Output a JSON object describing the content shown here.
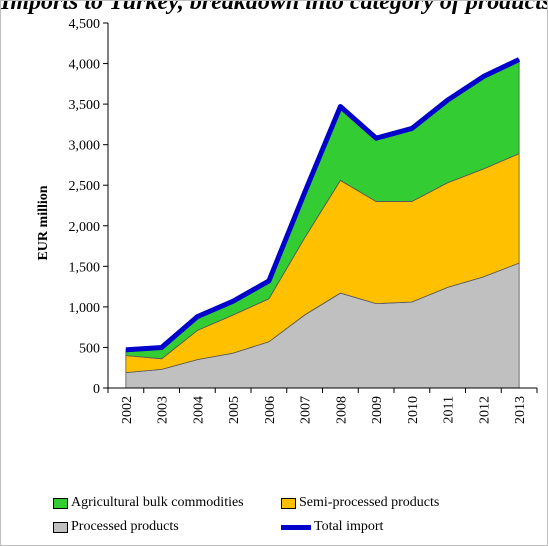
{
  "chart_data": {
    "type": "area",
    "title": "Imports to Turkey, breakdown into category of products (EUR million)",
    "ylabel": "EUR million",
    "xlabel": "",
    "categories": [
      "2002",
      "2003",
      "2004",
      "2005",
      "2006",
      "2007",
      "2008",
      "2009",
      "2010",
      "2011",
      "2012",
      "2013"
    ],
    "ylim": [
      0,
      4500
    ],
    "yticks": [
      0,
      500,
      1000,
      1500,
      2000,
      2500,
      3000,
      3500,
      4000,
      4500
    ],
    "ytick_labels": [
      "0",
      "500",
      "1,000",
      "1,500",
      "2,000",
      "2,500",
      "3,000",
      "3,500",
      "4,000",
      "4,500"
    ],
    "stacked": true,
    "series": [
      {
        "name": "Processed products",
        "type": "area",
        "color": "#c0c0c0",
        "values": [
          190,
          230,
          350,
          430,
          570,
          900,
          1170,
          1040,
          1060,
          1240,
          1370,
          1540
        ]
      },
      {
        "name": "Semi-processed products",
        "type": "area",
        "color": "#ffc000",
        "values": [
          210,
          130,
          360,
          470,
          530,
          950,
          1390,
          1260,
          1240,
          1290,
          1330,
          1350
        ]
      },
      {
        "name": "Agricultural bulk commodities",
        "type": "area",
        "color": "#33cc33",
        "values": [
          70,
          140,
          170,
          170,
          220,
          560,
          910,
          780,
          900,
          1020,
          1140,
          1160
        ]
      },
      {
        "name": "Total import",
        "type": "line",
        "color": "#0000cc",
        "values": [
          470,
          500,
          880,
          1070,
          1320,
          2410,
          3470,
          3080,
          3200,
          3550,
          3840,
          4050
        ]
      }
    ],
    "legend_position": "bottom",
    "grid": false
  }
}
